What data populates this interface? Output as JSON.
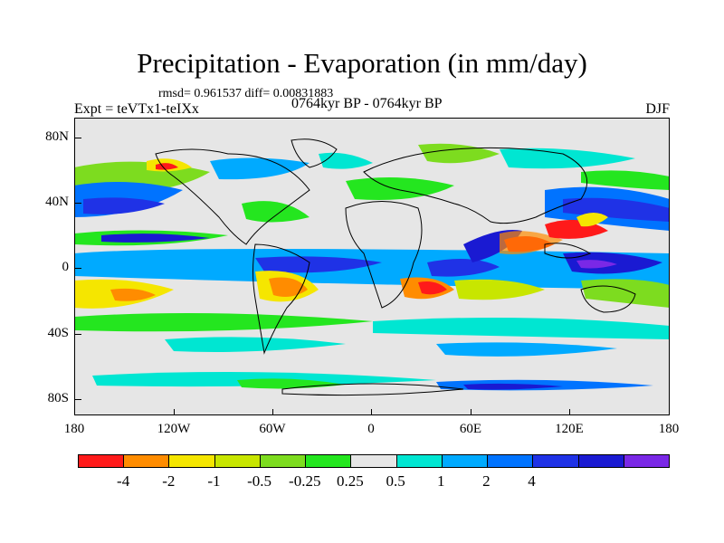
{
  "title": "Precipitation - Evaporation (in mm/day)",
  "stats": "rmsd= 0.961537 diff= 0.00831883",
  "period": "0764kyr BP - 0764kyr BP",
  "experiment": "Expt = teVTx1-teIXx",
  "season": "DJF",
  "axes": {
    "x_ticks": [
      "180",
      "120W",
      "60W",
      "0",
      "60E",
      "120E",
      "180"
    ],
    "y_ticks": [
      "80N",
      "40N",
      "0",
      "40S",
      "80S"
    ]
  },
  "colorbar": {
    "labels": [
      "-4",
      "-2",
      "-1",
      "-0.5",
      "-0.25",
      "0.25",
      "0.5",
      "1",
      "2",
      "4"
    ],
    "colors": [
      "#ff1a1a",
      "#ff8c00",
      "#f5e600",
      "#c8e600",
      "#7ddc1f",
      "#24e61f",
      "#e6e6e6",
      "#00e6d2",
      "#00aaff",
      "#0073ff",
      "#1f32e6",
      "#1a1ad2",
      "#7a28e6"
    ]
  },
  "map_fill_color": "#e6e6e6"
}
